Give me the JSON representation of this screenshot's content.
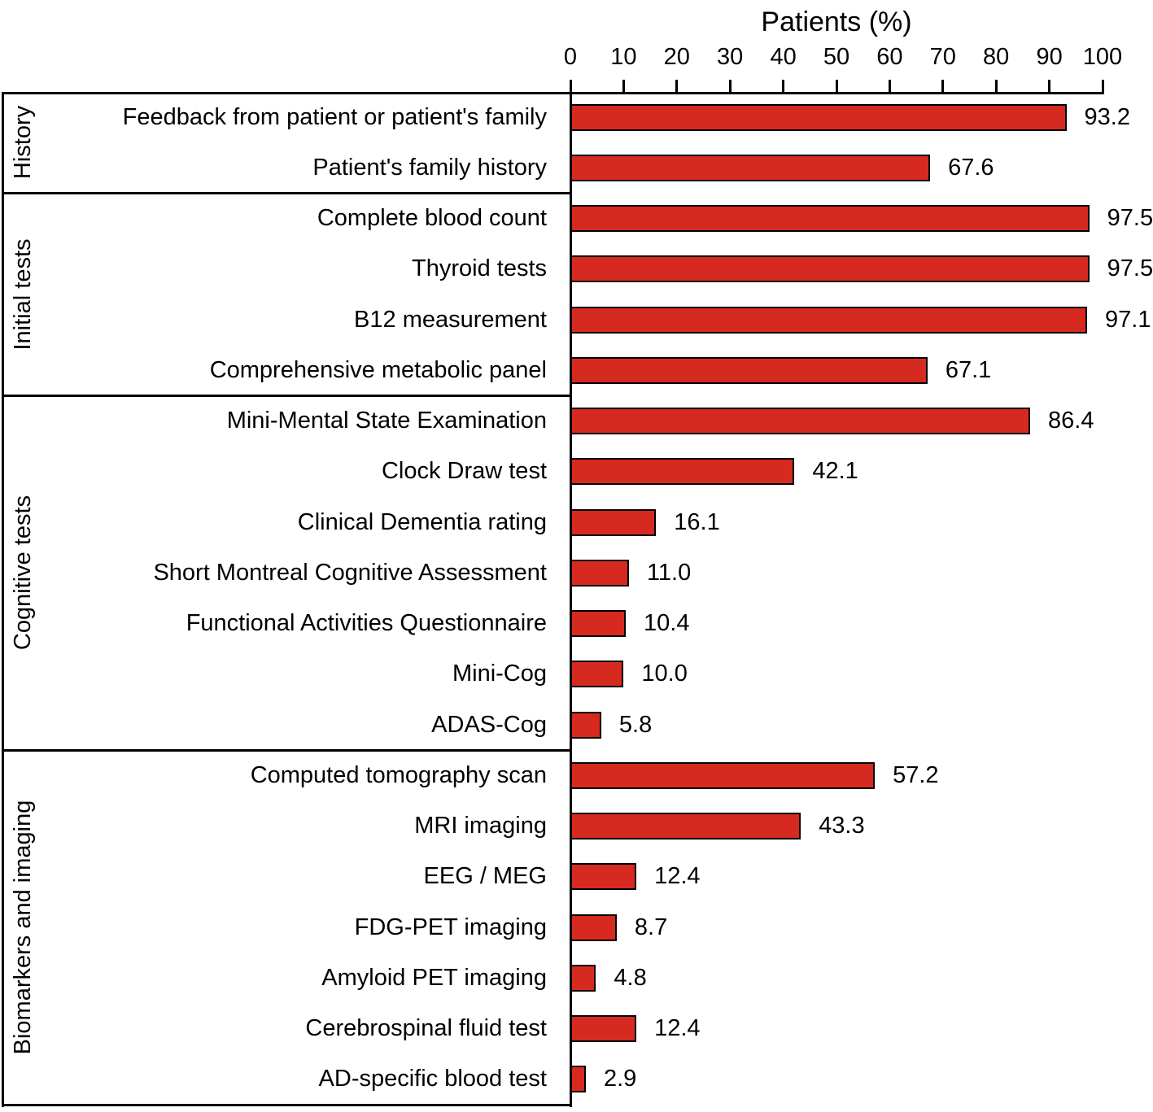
{
  "chart_data": {
    "type": "bar",
    "orientation": "horizontal",
    "title": "Patients (%)",
    "xlabel": "Patients (%)",
    "xlim": [
      0,
      100
    ],
    "xticks": [
      0,
      10,
      20,
      30,
      40,
      50,
      60,
      70,
      80,
      90,
      100
    ],
    "grid": false,
    "legend": "none",
    "bar_color": "#d62a20",
    "bar_border_color": "#000000",
    "value_label_decimals": 1,
    "groups": [
      {
        "name": "History",
        "items": [
          {
            "label": "Feedback from patient or patient's family",
            "value": 93.2
          },
          {
            "label": "Patient's family history",
            "value": 67.6
          }
        ]
      },
      {
        "name": "Initial tests",
        "items": [
          {
            "label": "Complete blood count",
            "value": 97.5
          },
          {
            "label": "Thyroid tests",
            "value": 97.5
          },
          {
            "label": "B12 measurement",
            "value": 97.1
          },
          {
            "label": "Comprehensive metabolic panel",
            "value": 67.1
          }
        ]
      },
      {
        "name": "Cognitive tests",
        "items": [
          {
            "label": "Mini-Mental State Examination",
            "value": 86.4
          },
          {
            "label": "Clock Draw test",
            "value": 42.1
          },
          {
            "label": "Clinical Dementia rating",
            "value": 16.1
          },
          {
            "label": "Short Montreal Cognitive Assessment",
            "value": 11.0
          },
          {
            "label": "Functional Activities Questionnaire",
            "value": 10.4
          },
          {
            "label": "Mini-Cog",
            "value": 10.0
          },
          {
            "label": "ADAS-Cog",
            "value": 5.8
          }
        ]
      },
      {
        "name": "Biomarkers and imaging",
        "items": [
          {
            "label": "Computed tomography scan",
            "value": 57.2
          },
          {
            "label": "MRI imaging",
            "value": 43.3
          },
          {
            "label": "EEG / MEG",
            "value": 12.4
          },
          {
            "label": "FDG-PET imaging",
            "value": 8.7
          },
          {
            "label": "Amyloid PET imaging",
            "value": 4.8
          },
          {
            "label": "Cerebrospinal fluid test",
            "value": 12.4
          },
          {
            "label": "AD-specific blood test",
            "value": 2.9
          }
        ]
      }
    ]
  }
}
